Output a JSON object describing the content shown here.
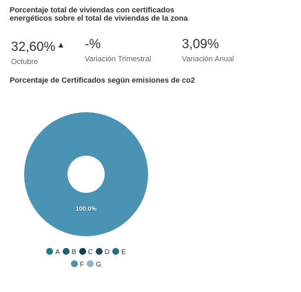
{
  "header": {
    "title": "Porcentaje total de viviendas con certificados energéticos sobre el total de viviendas de la zona"
  },
  "stats": [
    {
      "value": "32,60%",
      "arrow": "▲",
      "label": "Octubre"
    },
    {
      "value": "-%",
      "label": "Variación Trimestral"
    },
    {
      "value": "3,09%",
      "label": "Variación Anual"
    }
  ],
  "chart_data": {
    "type": "pie",
    "variant": "donut",
    "title": "Porcentaje de Certificados según emisiones de co2",
    "categories": [
      "A",
      "B",
      "C",
      "D",
      "E",
      "F",
      "G"
    ],
    "values": [
      0,
      0,
      0,
      0,
      0,
      100,
      0
    ],
    "data_labels": [
      "",
      "",
      "",
      "",
      "",
      "100.0%",
      ""
    ],
    "colors": [
      "#1a7c8c",
      "#1d5f73",
      "#0f3f52",
      "#1b4d66",
      "#2a6b85",
      "#4a93b4",
      "#8fb3c4"
    ],
    "legend_position": "bottom"
  }
}
